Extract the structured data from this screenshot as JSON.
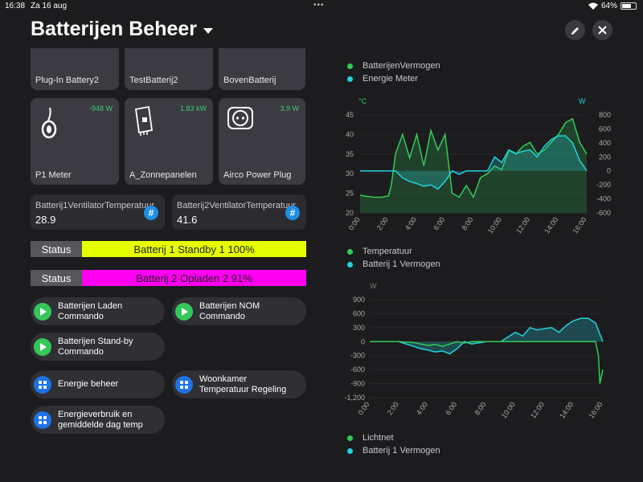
{
  "status_bar": {
    "time": "16:38",
    "date": "Za 16 aug",
    "battery": "64%",
    "battery_level": 64
  },
  "header": {
    "title": "Batterijen Beheer"
  },
  "top_cards": [
    {
      "label": "Plug-In Battery2"
    },
    {
      "label": "TestBatterij2"
    },
    {
      "label": "BovenBatterij"
    }
  ],
  "device_cards": [
    {
      "label": "P1 Meter",
      "power": "-948 W",
      "icon": "plug-icon"
    },
    {
      "label": "A_Zonnepanelen",
      "power": "1.83 kW",
      "icon": "inverter-icon"
    },
    {
      "label": "Airco Power Plug",
      "power": "3.9 W",
      "icon": "socket-icon"
    }
  ],
  "sensors": [
    {
      "name": "Batterij1VentilatorTemperatuur",
      "value": "28.9"
    },
    {
      "name": "Batterij2VentilatorTemperatuur",
      "value": "41.6"
    }
  ],
  "status_rows": [
    {
      "label": "Status",
      "value": "Batterij 1 Standby 1 100%",
      "color": "#e6ff00"
    },
    {
      "label": "Status",
      "value": "Batterij 2 Opladen 2 91%",
      "color": "#ff00f2"
    }
  ],
  "scripts": [
    {
      "line1": "Batterijen Laden",
      "line2": "Commando"
    },
    {
      "line1": "Batterijen NOM",
      "line2": "Commando"
    },
    {
      "line1": "Batterijen Stand-by",
      "line2": "Commando"
    }
  ],
  "navs": [
    {
      "line1": "Energie beheer",
      "line2": ""
    },
    {
      "line1": "Woonkamer",
      "line2": "Temperatuur Regeling"
    },
    {
      "line1": "Energieverbruik en",
      "line2": "gemiddelde dag temp"
    }
  ],
  "chart_top_legend": [
    {
      "name": "BatterijenVermogen",
      "color": "#33cc55"
    },
    {
      "name": "Energie Meter",
      "color": "#22d3e0"
    }
  ],
  "chart_mid_legend": [
    {
      "name": "Temperatuur",
      "color": "#33cc55"
    },
    {
      "name": "Batterij 1 Vermogen",
      "color": "#22d3e0"
    }
  ],
  "chart_bottom_legend": [
    {
      "name": "Lichtnet",
      "color": "#33cc55"
    },
    {
      "name": "Batterij 1 Vermogen",
      "color": "#22d3e0"
    }
  ],
  "chart_data": [
    {
      "type": "line",
      "title": "",
      "left_unit": "°C",
      "right_unit": "W",
      "left_ticks": [
        45,
        40,
        35,
        30,
        25,
        20
      ],
      "right_ticks": [
        800,
        600,
        400,
        200,
        0,
        -200,
        -400,
        -600
      ],
      "x_ticks": [
        "0:00",
        "2:00",
        "4:00",
        "6:00",
        "8:00",
        "10:00",
        "12:00",
        "14:00",
        "16:00"
      ],
      "ylim_left": [
        20,
        45
      ],
      "ylim_right": [
        -600,
        800
      ],
      "series": [
        {
          "name": "Temperatuur",
          "axis": "left",
          "color": "#33cc55",
          "x": [
            0,
            0.5,
            1,
            1.5,
            2,
            2.2,
            2.5,
            3,
            3.5,
            4,
            4.5,
            5,
            5.5,
            6,
            6.5,
            7,
            7.5,
            8,
            8.5,
            9,
            9.5,
            10,
            10.5,
            11,
            11.5,
            12,
            12.5,
            13,
            13.5,
            14,
            14.5,
            15,
            15.5,
            16
          ],
          "values": [
            24.5,
            24.2,
            24,
            24,
            24.3,
            27,
            35,
            40,
            34,
            40,
            32,
            41,
            36,
            40,
            25,
            24,
            27,
            24,
            29,
            30,
            32,
            31,
            36,
            35,
            37,
            38,
            35,
            36,
            38,
            40,
            43,
            44,
            38,
            35
          ]
        },
        {
          "name": "Batterij 1 Vermogen",
          "axis": "right",
          "color": "#22d3e0",
          "x": [
            0,
            0.5,
            1,
            1.5,
            2,
            2.5,
            3,
            3.5,
            4,
            4.5,
            5,
            5.5,
            6,
            6.5,
            7,
            7.5,
            8,
            8.5,
            9,
            9.5,
            10,
            10.5,
            11,
            11.5,
            12,
            12.5,
            13,
            13.5,
            14,
            14.5,
            15,
            15.5,
            16
          ],
          "values": [
            0,
            0,
            0,
            0,
            0,
            0,
            -100,
            -150,
            -180,
            -220,
            -200,
            -260,
            -150,
            0,
            -50,
            0,
            0,
            0,
            0,
            200,
            120,
            300,
            250,
            280,
            300,
            200,
            350,
            450,
            500,
            500,
            400,
            150,
            0
          ]
        }
      ]
    },
    {
      "type": "line",
      "title": "",
      "left_unit": "W",
      "left_ticks": [
        900,
        600,
        300,
        0,
        -300,
        -600,
        -900,
        -1200
      ],
      "x_ticks": [
        "0:00",
        "2:00",
        "4:00",
        "6:00",
        "8:00",
        "10:00",
        "12:00",
        "14:00",
        "16:00"
      ],
      "ylim": [
        -1200,
        900
      ],
      "series": [
        {
          "name": "Lichtnet",
          "color": "#33cc55",
          "x": [
            0,
            1,
            2,
            3,
            3.5,
            4,
            4.5,
            5,
            5.5,
            6,
            6.5,
            7,
            8,
            9,
            10,
            11,
            12,
            13,
            14,
            15,
            15.5,
            15.7,
            15.8,
            16
          ],
          "values": [
            0,
            0,
            0,
            -20,
            -50,
            -80,
            -60,
            -100,
            -50,
            0,
            -30,
            0,
            0,
            0,
            0,
            0,
            0,
            0,
            0,
            0,
            0,
            -300,
            -900,
            -600
          ]
        },
        {
          "name": "Batterij 1 Vermogen",
          "color": "#22d3e0",
          "x": [
            0,
            1,
            2,
            3,
            3.5,
            4,
            4.5,
            5,
            5.5,
            6,
            6.5,
            7,
            8,
            9,
            10,
            10.5,
            11,
            11.5,
            12,
            12.5,
            13,
            13.5,
            14,
            14.5,
            15,
            15.5,
            16
          ],
          "values": [
            0,
            0,
            0,
            -100,
            -150,
            -180,
            -220,
            -200,
            -260,
            -150,
            0,
            -50,
            0,
            0,
            200,
            120,
            300,
            250,
            280,
            300,
            200,
            350,
            450,
            500,
            500,
            400,
            0
          ]
        }
      ]
    }
  ]
}
